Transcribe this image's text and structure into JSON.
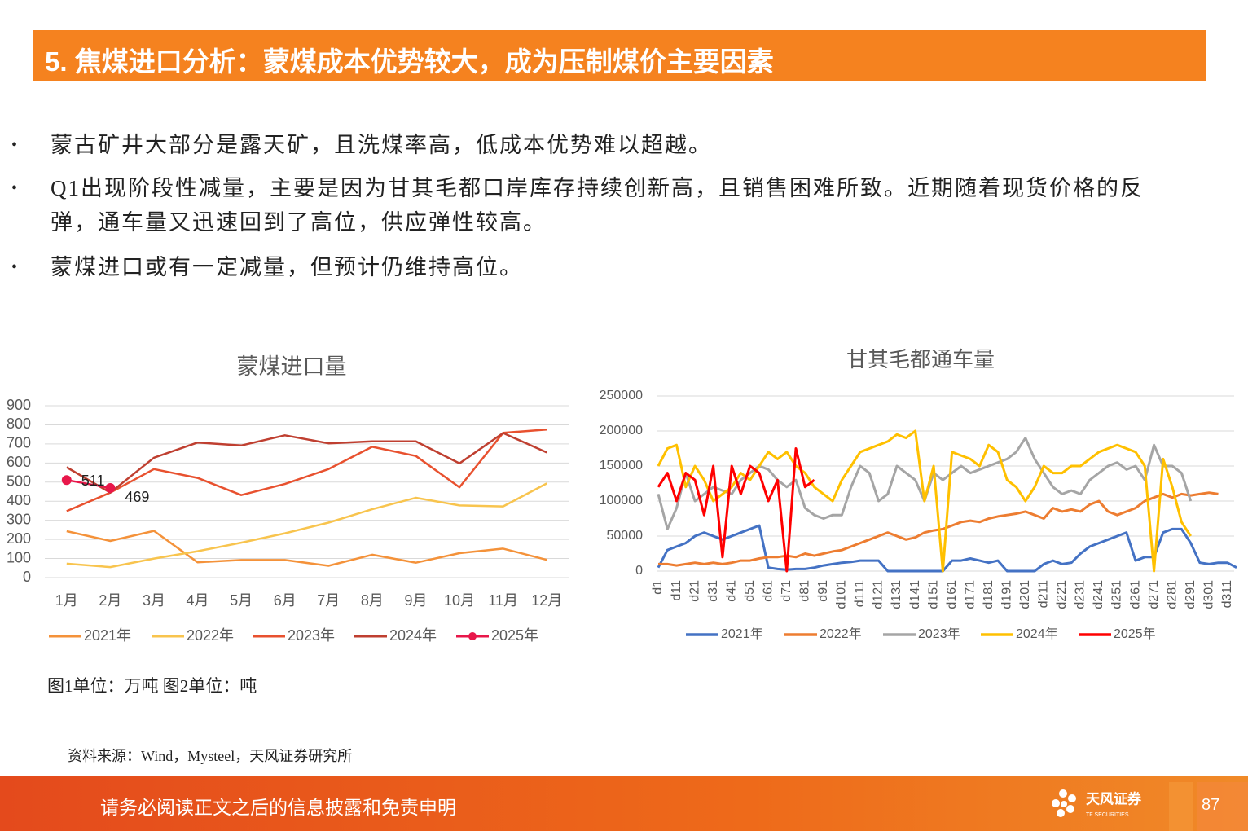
{
  "header": {
    "title": "5. 焦煤进口分析：蒙煤成本优势较大，成为压制煤价主要因素"
  },
  "bullets": [
    "蒙古矿井大部分是露天矿，且洗煤率高，低成本优势难以超越。",
    "Q1出现阶段性减量，主要是因为甘其毛都口岸库存持续创新高，且销售困难所致。近期随着现货价格的反弹，通车量又迅速回到了高位，供应弹性较高。",
    "蒙煤进口或有一定减量，但预计仍维持高位。"
  ],
  "chart_data": [
    {
      "type": "line",
      "title": "蒙煤进口量",
      "categories": [
        "1月",
        "2月",
        "3月",
        "4月",
        "5月",
        "6月",
        "7月",
        "8月",
        "9月",
        "10月",
        "11月",
        "12月"
      ],
      "ylim": [
        0,
        900
      ],
      "yticks": [
        0,
        100,
        200,
        300,
        400,
        500,
        600,
        700,
        800,
        900
      ],
      "grid": true,
      "legend": "bottom",
      "series": [
        {
          "name": "2021年",
          "color": "#F4923A",
          "values": [
            243,
            192,
            245,
            80,
            92,
            92,
            62,
            120,
            78,
            128,
            152,
            93
          ]
        },
        {
          "name": "2022年",
          "color": "#F8C44E",
          "values": [
            73,
            55,
            100,
            138,
            183,
            232,
            288,
            358,
            418,
            378,
            373,
            493
          ]
        },
        {
          "name": "2023年",
          "color": "#E8512F",
          "values": [
            348,
            445,
            568,
            522,
            432,
            490,
            568,
            685,
            637,
            473,
            758,
            775
          ]
        },
        {
          "name": "2024年",
          "color": "#BF3F30",
          "values": [
            578,
            445,
            628,
            707,
            692,
            745,
            703,
            713,
            713,
            598,
            757,
            655
          ]
        },
        {
          "name": "2025年",
          "color": "#E8174A",
          "markers": true,
          "data_labels": true,
          "values": [
            511,
            469,
            null,
            null,
            null,
            null,
            null,
            null,
            null,
            null,
            null,
            null
          ]
        }
      ]
    },
    {
      "type": "line",
      "title": "甘其毛都通车量",
      "categories": [
        "d1",
        null,
        "d11",
        null,
        "d21",
        null,
        "d31",
        null,
        "d41",
        null,
        "d51",
        null,
        "d61",
        null,
        "d71",
        null,
        "d81",
        null,
        "d91",
        null,
        "d101",
        null,
        "d111",
        null,
        "d121",
        null,
        "d131",
        null,
        "d141",
        null,
        "d151",
        null,
        "d161",
        null,
        "d171",
        null,
        "d181",
        null,
        "d191",
        null,
        "d201",
        null,
        "d211",
        null,
        "d221",
        null,
        "d231",
        null,
        "d241",
        null,
        "d251",
        null,
        "d261",
        null,
        "d271",
        null,
        "d281",
        null,
        "d291",
        null,
        "d301",
        null,
        "d311",
        null
      ],
      "ylim": [
        0,
        250000
      ],
      "yticks": [
        0,
        50000,
        100000,
        150000,
        200000,
        250000
      ],
      "grid": true,
      "legend": "bottom",
      "series": [
        {
          "name": "2021年",
          "color": "#4472C4",
          "values": [
            5000,
            30000,
            35000,
            40000,
            50000,
            55000,
            50000,
            45000,
            50000,
            55000,
            60000,
            65000,
            5000,
            3000,
            2000,
            3000,
            3000,
            5000,
            8000,
            10000,
            12000,
            13000,
            15000,
            15000,
            15000,
            0,
            0,
            0,
            0,
            0,
            0,
            0,
            15000,
            15000,
            18000,
            15000,
            12000,
            15000,
            0,
            0,
            0,
            0,
            10000,
            15000,
            10000,
            12000,
            25000,
            35000,
            40000,
            45000,
            50000,
            55000,
            15000,
            20000,
            20000,
            55000,
            60000,
            60000,
            40000,
            12000,
            10000,
            12000,
            12000,
            5000
          ]
        },
        {
          "name": "2022年",
          "color": "#ED7D31",
          "values": [
            10000,
            10000,
            8000,
            10000,
            12000,
            10000,
            12000,
            10000,
            12000,
            15000,
            15000,
            18000,
            20000,
            20000,
            22000,
            20000,
            25000,
            22000,
            25000,
            28000,
            30000,
            35000,
            40000,
            45000,
            50000,
            55000,
            50000,
            45000,
            48000,
            55000,
            58000,
            60000,
            65000,
            70000,
            72000,
            70000,
            75000,
            78000,
            80000,
            82000,
            85000,
            80000,
            75000,
            90000,
            85000,
            88000,
            85000,
            95000,
            100000,
            85000,
            80000,
            85000,
            90000,
            100000,
            105000,
            110000,
            105000,
            110000,
            108000,
            110000,
            112000,
            110000,
            null,
            null
          ]
        },
        {
          "name": "2023年",
          "color": "#A5A5A5",
          "values": [
            110000,
            60000,
            90000,
            140000,
            100000,
            110000,
            120000,
            115000,
            110000,
            130000,
            140000,
            150000,
            145000,
            130000,
            120000,
            130000,
            90000,
            80000,
            75000,
            80000,
            80000,
            120000,
            150000,
            140000,
            100000,
            110000,
            150000,
            140000,
            130000,
            100000,
            140000,
            130000,
            140000,
            150000,
            140000,
            145000,
            150000,
            155000,
            160000,
            170000,
            190000,
            160000,
            140000,
            120000,
            110000,
            115000,
            110000,
            130000,
            140000,
            150000,
            155000,
            145000,
            150000,
            130000,
            180000,
            150000,
            150000,
            140000,
            100000,
            null,
            null,
            null,
            null,
            null
          ]
        },
        {
          "name": "2024年",
          "color": "#FFC000",
          "values": [
            150000,
            175000,
            180000,
            120000,
            150000,
            130000,
            100000,
            110000,
            120000,
            140000,
            130000,
            150000,
            170000,
            160000,
            170000,
            150000,
            140000,
            120000,
            110000,
            100000,
            130000,
            150000,
            170000,
            175000,
            180000,
            185000,
            195000,
            190000,
            200000,
            100000,
            150000,
            0,
            170000,
            165000,
            160000,
            150000,
            180000,
            170000,
            130000,
            120000,
            100000,
            120000,
            150000,
            140000,
            140000,
            150000,
            150000,
            160000,
            170000,
            175000,
            180000,
            175000,
            170000,
            150000,
            0,
            160000,
            120000,
            70000,
            50000,
            null,
            null,
            null,
            null,
            null
          ]
        },
        {
          "name": "2025年",
          "color": "#FF0000",
          "values": [
            120000,
            140000,
            100000,
            140000,
            130000,
            80000,
            150000,
            20000,
            150000,
            110000,
            150000,
            140000,
            100000,
            130000,
            0,
            175000,
            120000,
            130000,
            null,
            null,
            null,
            null,
            null,
            null,
            null,
            null,
            null,
            null,
            null,
            null,
            null,
            null,
            null,
            null,
            null,
            null,
            null,
            null,
            null,
            null,
            null,
            null,
            null,
            null,
            null,
            null,
            null,
            null,
            null,
            null,
            null,
            null,
            null,
            null,
            null,
            null,
            null,
            null,
            null,
            null,
            null,
            null,
            null,
            null
          ]
        }
      ]
    }
  ],
  "caption": "图1单位：万吨 图2单位：吨",
  "source": "资料来源：Wind，Mysteel，天风证券研究所",
  "footer": {
    "disclaimer": "请务必阅读正文之后的信息披露和免责申明",
    "logo": "天风证券",
    "logo_en": "TF SECURITIES",
    "page": 87
  }
}
